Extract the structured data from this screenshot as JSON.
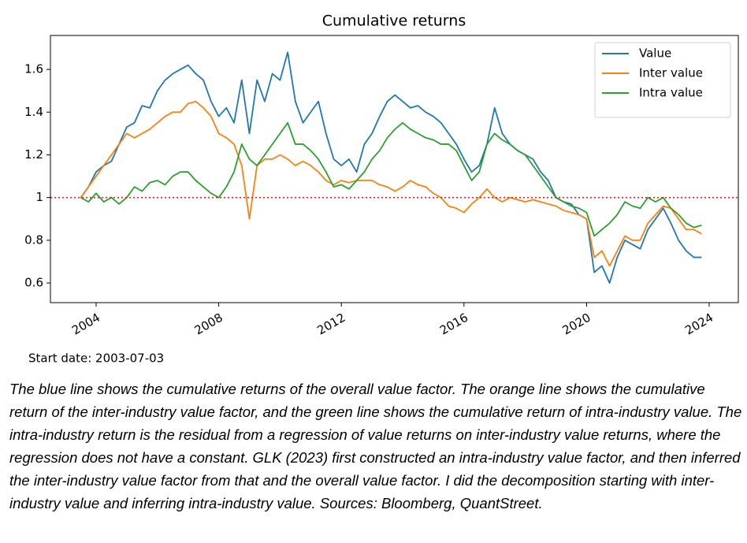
{
  "chart_data": {
    "type": "line",
    "title": "Cumulative returns",
    "annotation": "Start date: 2003-07-03",
    "x": [
      2003.5,
      2003.75,
      2004,
      2004.25,
      2004.5,
      2004.75,
      2005,
      2005.25,
      2005.5,
      2005.75,
      2006,
      2006.25,
      2006.5,
      2006.75,
      2007,
      2007.25,
      2007.5,
      2007.75,
      2008,
      2008.25,
      2008.5,
      2008.75,
      2009,
      2009.25,
      2009.5,
      2009.75,
      2010,
      2010.25,
      2010.5,
      2010.75,
      2011,
      2011.25,
      2011.5,
      2011.75,
      2012,
      2012.25,
      2012.5,
      2012.75,
      2013,
      2013.25,
      2013.5,
      2013.75,
      2014,
      2014.25,
      2014.5,
      2014.75,
      2015,
      2015.25,
      2015.5,
      2015.75,
      2016,
      2016.25,
      2016.5,
      2016.75,
      2017,
      2017.25,
      2017.5,
      2017.75,
      2018,
      2018.25,
      2018.5,
      2018.75,
      2019,
      2019.25,
      2019.5,
      2019.75,
      2020,
      2020.25,
      2020.5,
      2020.75,
      2021,
      2021.25,
      2021.5,
      2021.75,
      2022,
      2022.25,
      2022.5,
      2022.75,
      2023,
      2023.25,
      2023.5,
      2023.75
    ],
    "series": [
      {
        "name": "Value",
        "color": "#1f77b4",
        "values": [
          1.0,
          1.05,
          1.12,
          1.15,
          1.17,
          1.25,
          1.33,
          1.35,
          1.43,
          1.42,
          1.5,
          1.55,
          1.58,
          1.6,
          1.62,
          1.58,
          1.55,
          1.45,
          1.38,
          1.42,
          1.35,
          1.55,
          1.3,
          1.55,
          1.45,
          1.58,
          1.55,
          1.68,
          1.45,
          1.35,
          1.4,
          1.45,
          1.3,
          1.18,
          1.15,
          1.18,
          1.12,
          1.25,
          1.3,
          1.38,
          1.45,
          1.48,
          1.45,
          1.42,
          1.43,
          1.4,
          1.38,
          1.35,
          1.3,
          1.25,
          1.18,
          1.12,
          1.15,
          1.25,
          1.42,
          1.3,
          1.25,
          1.22,
          1.2,
          1.18,
          1.12,
          1.08,
          1.0,
          0.98,
          0.97,
          0.92,
          0.9,
          0.65,
          0.68,
          0.6,
          0.72,
          0.8,
          0.78,
          0.76,
          0.85,
          0.9,
          0.95,
          0.88,
          0.8,
          0.75,
          0.72,
          0.72
        ]
      },
      {
        "name": "Inter value",
        "color": "#ff7f0e",
        "values": [
          1.0,
          1.05,
          1.1,
          1.15,
          1.2,
          1.25,
          1.3,
          1.28,
          1.3,
          1.32,
          1.35,
          1.38,
          1.4,
          1.4,
          1.44,
          1.45,
          1.42,
          1.38,
          1.3,
          1.28,
          1.25,
          1.15,
          0.9,
          1.15,
          1.18,
          1.18,
          1.2,
          1.18,
          1.15,
          1.17,
          1.15,
          1.12,
          1.08,
          1.06,
          1.08,
          1.07,
          1.08,
          1.08,
          1.08,
          1.06,
          1.05,
          1.03,
          1.05,
          1.08,
          1.06,
          1.05,
          1.02,
          1.0,
          0.96,
          0.95,
          0.93,
          0.97,
          1.0,
          1.04,
          1.0,
          0.98,
          1.0,
          0.99,
          0.98,
          0.99,
          0.98,
          0.97,
          0.96,
          0.94,
          0.93,
          0.92,
          0.9,
          0.72,
          0.75,
          0.68,
          0.75,
          0.82,
          0.8,
          0.8,
          0.88,
          0.92,
          0.96,
          0.95,
          0.9,
          0.85,
          0.85,
          0.83
        ]
      },
      {
        "name": "Intra value",
        "color": "#2ca02c",
        "values": [
          1.0,
          0.98,
          1.02,
          0.98,
          1.0,
          0.97,
          1.0,
          1.05,
          1.03,
          1.07,
          1.08,
          1.06,
          1.1,
          1.12,
          1.12,
          1.08,
          1.05,
          1.02,
          1.0,
          1.05,
          1.12,
          1.25,
          1.18,
          1.15,
          1.2,
          1.25,
          1.3,
          1.35,
          1.25,
          1.25,
          1.22,
          1.18,
          1.12,
          1.05,
          1.06,
          1.04,
          1.08,
          1.12,
          1.18,
          1.22,
          1.28,
          1.32,
          1.35,
          1.32,
          1.3,
          1.28,
          1.27,
          1.25,
          1.25,
          1.22,
          1.15,
          1.08,
          1.12,
          1.25,
          1.3,
          1.27,
          1.25,
          1.22,
          1.2,
          1.15,
          1.1,
          1.05,
          1.0,
          0.98,
          0.96,
          0.95,
          0.93,
          0.82,
          0.85,
          0.88,
          0.92,
          0.98,
          0.96,
          0.95,
          1.0,
          0.98,
          1.0,
          0.95,
          0.92,
          0.88,
          0.86,
          0.87
        ]
      }
    ],
    "hline": {
      "value": 1.0,
      "color": "#d62728"
    },
    "xlim": [
      2002.51,
      2024.95
    ],
    "xticks": [
      2004,
      2008,
      2012,
      2016,
      2020,
      2024
    ],
    "ylim": [
      0.508,
      1.759
    ],
    "yticks": [
      0.6,
      0.8,
      1.0,
      1.2,
      1.4,
      1.6
    ],
    "legend": "upper right",
    "grid": false
  },
  "caption": "The blue line shows the cumulative returns of the overall value factor. The orange line shows the cumulative return of the inter-industry value factor, and the green line shows the cumulative return of intra-industry value. The intra-industry return is the residual from a regression of value returns on inter-industry value returns, where the regression does not have a constant. GLK (2023) first constructed an intra-industry value factor, and then inferred the inter-industry value factor from that and the overall value factor. I did the decomposition starting with inter-industry value and inferring intra-industry value. Sources: Bloomberg, QuantStreet."
}
